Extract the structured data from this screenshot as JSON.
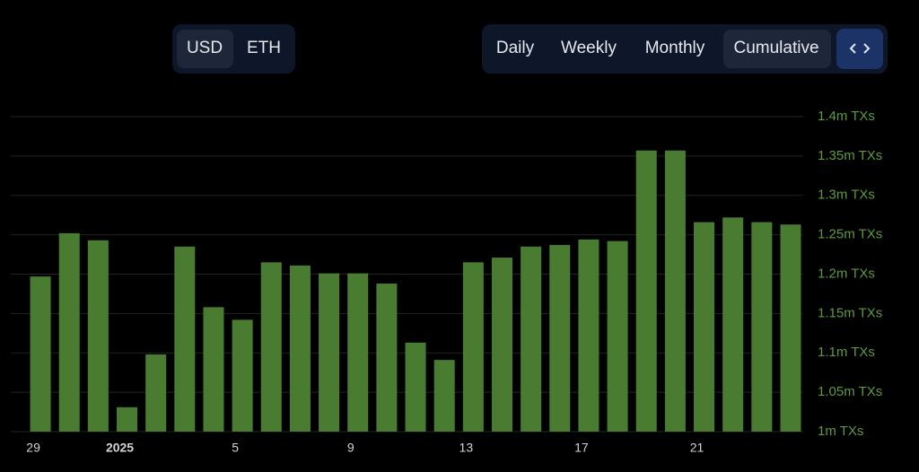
{
  "controls": {
    "currency": [
      "USD",
      "ETH"
    ],
    "period": [
      "Daily",
      "Weekly",
      "Monthly",
      "Cumulative"
    ]
  },
  "chart_data": {
    "type": "bar",
    "categories": [
      "29",
      null,
      null,
      "2025",
      null,
      null,
      null,
      "5",
      null,
      null,
      null,
      "9",
      null,
      null,
      null,
      "13",
      null,
      null,
      null,
      "17",
      null,
      null,
      null,
      "21",
      null,
      null,
      null
    ],
    "values": [
      1197000,
      1252000,
      1243000,
      1031000,
      1098000,
      1235000,
      1158000,
      1142000,
      1215000,
      1211000,
      1201000,
      1201000,
      1188000,
      1113000,
      1091000,
      1215000,
      1221000,
      1235000,
      1237000,
      1244000,
      1242000,
      1357000,
      1357000,
      1266000,
      1272000,
      1266000,
      1263000
    ],
    "color": "#497c31",
    "ylim": [
      1000000,
      1400000
    ],
    "yticks": [
      {
        "value": 1000000,
        "label": "1m TXs"
      },
      {
        "value": 1050000,
        "label": "1.05m TXs"
      },
      {
        "value": 1100000,
        "label": "1.1m TXs"
      },
      {
        "value": 1150000,
        "label": "1.15m TXs"
      },
      {
        "value": 1200000,
        "label": "1.2m TXs"
      },
      {
        "value": 1250000,
        "label": "1.25m TXs"
      },
      {
        "value": 1300000,
        "label": "1.3m TXs"
      },
      {
        "value": 1350000,
        "label": "1.35m TXs"
      },
      {
        "value": 1400000,
        "label": "1.4m TXs"
      }
    ],
    "grid": true
  }
}
